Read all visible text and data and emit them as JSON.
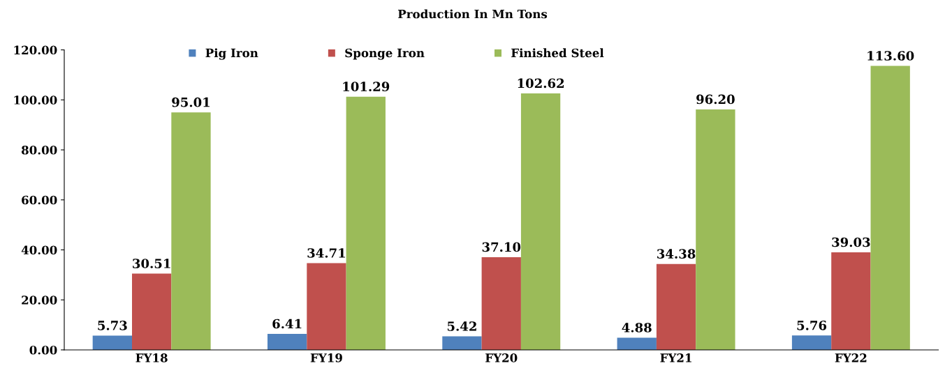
{
  "chart_data": {
    "type": "bar",
    "title": "Production In Mn Tons",
    "categories": [
      "FY18",
      "FY19",
      "FY20",
      "FY21",
      "FY22"
    ],
    "series": [
      {
        "name": "Pig Iron",
        "color": "#4f81bd",
        "values": [
          5.73,
          6.41,
          5.42,
          4.88,
          5.76
        ],
        "value_labels": [
          "5.73",
          "6.41",
          "5.42",
          "4.88",
          "5.76"
        ]
      },
      {
        "name": "Sponge Iron",
        "color": "#c0504d",
        "values": [
          30.51,
          34.71,
          37.1,
          34.38,
          39.03
        ],
        "value_labels": [
          "30.51",
          "34.71",
          "37.10",
          "34.38",
          "39.03"
        ]
      },
      {
        "name": "Finished Steel",
        "color": "#9bbb59",
        "values": [
          95.01,
          101.29,
          102.62,
          96.2,
          113.6
        ],
        "value_labels": [
          "95.01",
          "101.29",
          "102.62",
          "96.20",
          "113.60"
        ]
      }
    ],
    "ylim": [
      0,
      120
    ],
    "yticks": [
      {
        "value": 0,
        "label": "0.00"
      },
      {
        "value": 20,
        "label": "20.00"
      },
      {
        "value": 40,
        "label": "40.00"
      },
      {
        "value": 60,
        "label": "60.00"
      },
      {
        "value": 80,
        "label": "80.00"
      },
      {
        "value": 100,
        "label": "100.00"
      },
      {
        "value": 120,
        "label": "120.00"
      }
    ],
    "legend": "top",
    "grid": false
  }
}
